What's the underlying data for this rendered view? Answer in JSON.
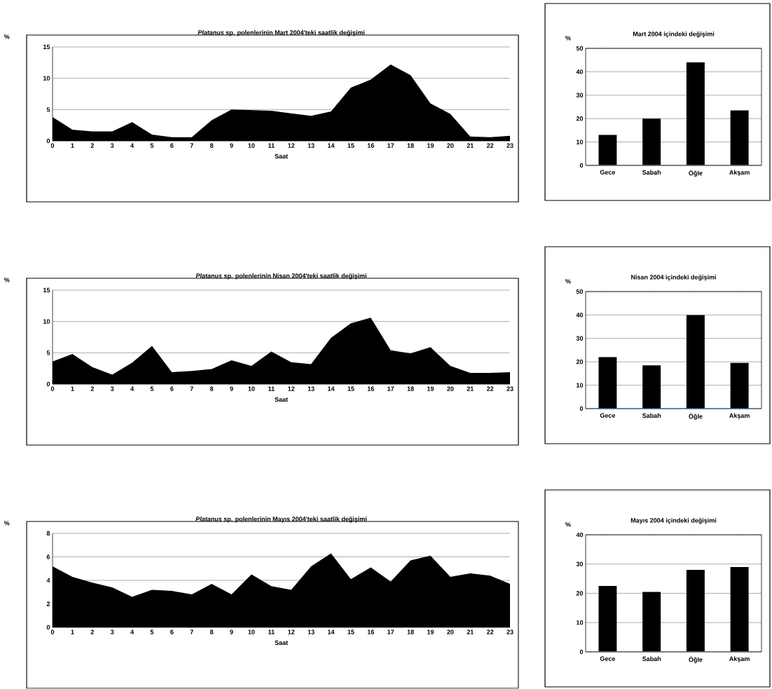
{
  "chart_data": [
    {
      "type": "area",
      "title": "*Platanus* sp. polenlerinin Mart 2004'teki saatlik değişimi",
      "ylabel": "%",
      "xlabel": "Saat",
      "categories": [
        "0",
        "1",
        "2",
        "3",
        "4",
        "5",
        "6",
        "7",
        "8",
        "9",
        "10",
        "11",
        "12",
        "13",
        "14",
        "15",
        "16",
        "17",
        "18",
        "19",
        "20",
        "21",
        "22",
        "23"
      ],
      "values": [
        3.8,
        1.8,
        1.5,
        1.5,
        3.0,
        1.0,
        0.6,
        0.6,
        3.3,
        5.0,
        4.9,
        4.8,
        4.4,
        4.0,
        4.7,
        8.5,
        9.8,
        12.2,
        10.5,
        6.0,
        4.3,
        0.7,
        0.6,
        0.8
      ],
      "color": "#000000",
      "ylim": [
        0,
        15
      ],
      "yticks": [
        0,
        5,
        10,
        15
      ],
      "grid": "y"
    },
    {
      "type": "bar",
      "title": "Mart 2004 içindeki değişimi",
      "ylabel": "%",
      "categories": [
        "Gece",
        "Sabah",
        "Öğle",
        "Akşam"
      ],
      "values": [
        13,
        20,
        44,
        23.5
      ],
      "color": "#000000",
      "ylim": [
        0,
        50
      ],
      "yticks": [
        0,
        10,
        20,
        30,
        40,
        50
      ],
      "grid": "y"
    },
    {
      "type": "area",
      "title": "*Platanus* sp. polenlerinin Nisan 2004'teki saatlik değişimi",
      "ylabel": "%",
      "xlabel": "Saat",
      "categories": [
        "0",
        "1",
        "2",
        "3",
        "4",
        "5",
        "6",
        "7",
        "8",
        "9",
        "10",
        "11",
        "12",
        "13",
        "14",
        "15",
        "16",
        "17",
        "18",
        "19",
        "20",
        "21",
        "22",
        "23"
      ],
      "values": [
        3.6,
        4.8,
        2.7,
        1.5,
        3.4,
        6.1,
        1.9,
        2.1,
        2.4,
        3.8,
        2.9,
        5.2,
        3.5,
        3.2,
        7.4,
        9.7,
        10.6,
        5.4,
        4.9,
        5.9,
        2.9,
        1.8,
        1.8,
        1.9
      ],
      "color": "#000000",
      "ylim": [
        0,
        15
      ],
      "yticks": [
        0,
        5,
        10,
        15
      ],
      "grid": "y"
    },
    {
      "type": "bar",
      "title": "Nisan 2004 içindeki değişimi",
      "ylabel": "%",
      "categories": [
        "Gece",
        "Sabah",
        "Öğle",
        "Akşam"
      ],
      "values": [
        22,
        18.5,
        40,
        19.5
      ],
      "color": "#000000",
      "ylim": [
        0,
        50
      ],
      "yticks": [
        0,
        10,
        20,
        30,
        40,
        50
      ],
      "grid": "y"
    },
    {
      "type": "area",
      "title": "*Platanus* sp. polenlerinin Mayıs 2004'teki saatlik değişimi",
      "ylabel": "%",
      "xlabel": "Saat",
      "categories": [
        "0",
        "1",
        "2",
        "3",
        "4",
        "5",
        "6",
        "7",
        "8",
        "9",
        "10",
        "11",
        "12",
        "13",
        "14",
        "15",
        "16",
        "17",
        "18",
        "19",
        "20",
        "21",
        "22",
        "23"
      ],
      "values": [
        5.2,
        4.3,
        3.8,
        3.4,
        2.6,
        3.2,
        3.1,
        2.8,
        3.7,
        2.8,
        4.5,
        3.5,
        3.2,
        5.2,
        6.3,
        4.1,
        5.1,
        3.9,
        5.7,
        6.1,
        4.3,
        4.6,
        4.4,
        3.7
      ],
      "color": "#000000",
      "ylim": [
        0,
        8
      ],
      "yticks": [
        0,
        2,
        4,
        6,
        8
      ],
      "grid": "y"
    },
    {
      "type": "bar",
      "title": "Mayıs 2004 içindeki değişimi",
      "ylabel": "%",
      "categories": [
        "Gece",
        "Sabah",
        "Öğle",
        "Akşam"
      ],
      "values": [
        22.5,
        20.5,
        28,
        29
      ],
      "color": "#000000",
      "ylim": [
        0,
        40
      ],
      "yticks": [
        0,
        10,
        20,
        30,
        40
      ],
      "grid": "y"
    }
  ]
}
